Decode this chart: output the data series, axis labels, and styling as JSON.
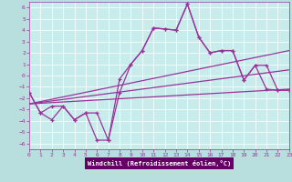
{
  "xlabel": "Windchill (Refroidissement éolien,°C)",
  "xlim": [
    0,
    23
  ],
  "ylim": [
    -6.5,
    6.5
  ],
  "yticks": [
    -6,
    -5,
    -4,
    -3,
    -2,
    -1,
    0,
    1,
    2,
    3,
    4,
    5,
    6
  ],
  "xticks": [
    0,
    1,
    2,
    3,
    4,
    5,
    6,
    7,
    8,
    9,
    10,
    11,
    12,
    13,
    14,
    15,
    16,
    17,
    18,
    19,
    20,
    21,
    22,
    23
  ],
  "bg_color": "#b8dede",
  "plot_bg": "#c8ecec",
  "line_color": "#993399",
  "label_bg": "#660066",
  "label_fg": "#ffffff",
  "line1_x": [
    0,
    1,
    2,
    3,
    4,
    5,
    6,
    7,
    8,
    9,
    10,
    11,
    12,
    13,
    14,
    15,
    16,
    17,
    18,
    19,
    20,
    21,
    22,
    23
  ],
  "line1_y": [
    -1.5,
    -3.3,
    -3.9,
    -2.7,
    -3.9,
    -3.3,
    -5.7,
    -5.7,
    -0.3,
    1.0,
    2.2,
    4.2,
    4.1,
    4.0,
    6.3,
    3.4,
    2.0,
    2.2,
    2.2,
    -0.4,
    0.9,
    -1.2,
    -1.3,
    -1.3
  ],
  "line2_x": [
    0,
    1,
    2,
    3,
    4,
    5,
    6,
    7,
    8,
    9,
    10,
    11,
    12,
    13,
    14,
    15,
    16,
    17,
    18,
    19,
    20,
    21,
    22,
    23
  ],
  "line2_y": [
    -1.5,
    -3.3,
    -2.7,
    -2.7,
    -3.9,
    -3.3,
    -3.3,
    -5.7,
    -1.5,
    1.0,
    2.2,
    4.2,
    4.1,
    4.0,
    6.3,
    3.4,
    2.0,
    2.2,
    2.2,
    -0.4,
    0.9,
    0.9,
    -1.3,
    -1.3
  ],
  "trend1_x": [
    0,
    23
  ],
  "trend1_y": [
    -2.5,
    2.2
  ],
  "trend2_x": [
    0,
    23
  ],
  "trend2_y": [
    -2.5,
    0.5
  ],
  "trend3_x": [
    0,
    23
  ],
  "trend3_y": [
    -2.5,
    -1.2
  ]
}
